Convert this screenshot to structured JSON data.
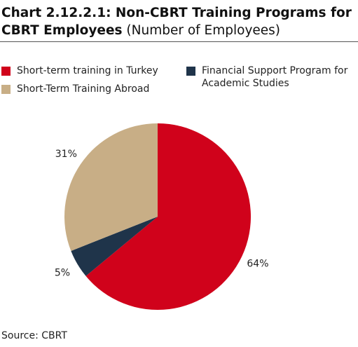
{
  "chart_data": {
    "type": "pie",
    "title": "Chart 2.12.2.1: Non-CBRT Training Programs for CBRT Employees",
    "subtitle": "(Number of Employees)",
    "categories": [
      "Short-term training in Turkey",
      "Financial Support Program for Academic Studies",
      "Short-Term Training Abroad"
    ],
    "values": [
      64,
      5,
      31
    ],
    "value_labels": [
      "64%",
      "5%",
      "31%"
    ],
    "colors": [
      "#d0021b",
      "#1f344a",
      "#c8ae86"
    ],
    "source": "Source: CBRT"
  }
}
